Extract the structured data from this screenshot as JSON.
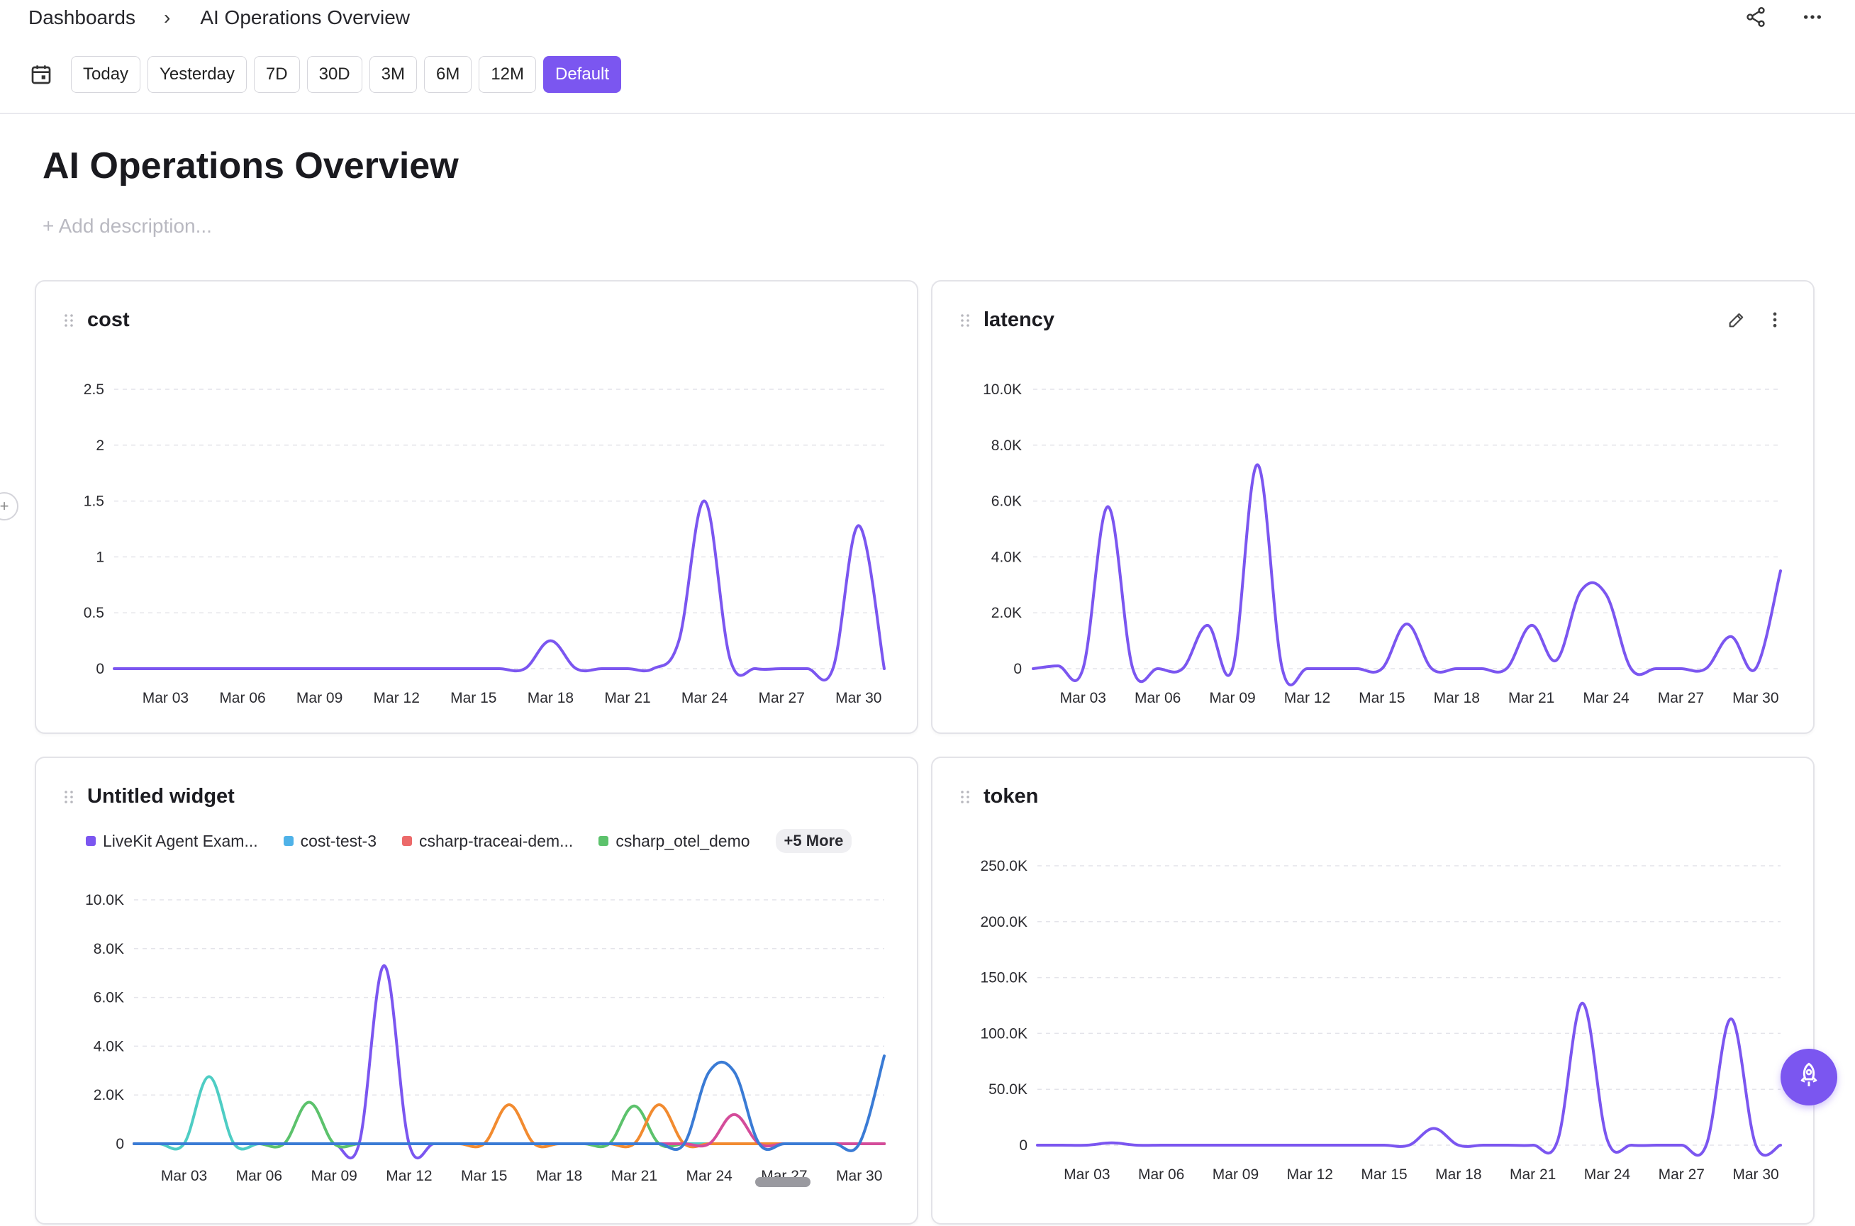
{
  "breadcrumb": {
    "root": "Dashboards",
    "separator": "›",
    "current": "AI Operations Overview"
  },
  "top_actions": [
    "share-icon",
    "more-horizontal-icon"
  ],
  "date_ranges": [
    {
      "label": "Today",
      "active": false
    },
    {
      "label": "Yesterday",
      "active": false
    },
    {
      "label": "7D",
      "active": false
    },
    {
      "label": "30D",
      "active": false
    },
    {
      "label": "3M",
      "active": false
    },
    {
      "label": "6M",
      "active": false
    },
    {
      "label": "12M",
      "active": false
    },
    {
      "label": "Default",
      "active": true
    }
  ],
  "page": {
    "title": "AI Operations Overview",
    "description_placeholder": "+ Add description..."
  },
  "colors": {
    "accent": "#7b56f0",
    "line": "#7b56f0",
    "grid": "#e4e4ea"
  },
  "widgets": {
    "cost": {
      "title": "cost"
    },
    "latency": {
      "title": "latency"
    },
    "untitled": {
      "title": "Untitled widget",
      "legend": [
        {
          "name": "LiveKit Agent Exam...",
          "color": "#7b56f0"
        },
        {
          "name": "cost-test-3",
          "color": "#4fb2e8"
        },
        {
          "name": "csharp-traceai-dem...",
          "color": "#ec6a6a"
        },
        {
          "name": "csharp_otel_demo",
          "color": "#5cc26c"
        }
      ],
      "more_label": "+5 More"
    },
    "token": {
      "title": "token"
    }
  },
  "chart_data": [
    {
      "id": "cost",
      "type": "line",
      "title": "cost",
      "x": [
        "Mar 01",
        "Mar 02",
        "Mar 03",
        "Mar 04",
        "Mar 05",
        "Mar 06",
        "Mar 07",
        "Mar 08",
        "Mar 09",
        "Mar 10",
        "Mar 11",
        "Mar 12",
        "Mar 13",
        "Mar 14",
        "Mar 15",
        "Mar 16",
        "Mar 17",
        "Mar 18",
        "Mar 19",
        "Mar 20",
        "Mar 21",
        "Mar 22",
        "Mar 23",
        "Mar 24",
        "Mar 25",
        "Mar 26",
        "Mar 27",
        "Mar 28",
        "Mar 29",
        "Mar 30",
        "Mar 31"
      ],
      "x_ticks": [
        "Mar 03",
        "Mar 06",
        "Mar 09",
        "Mar 12",
        "Mar 15",
        "Mar 18",
        "Mar 21",
        "Mar 24",
        "Mar 27",
        "Mar 30"
      ],
      "y_ticks": [
        "0",
        "0.5",
        "1",
        "1.5",
        "2",
        "2.5"
      ],
      "ylim": [
        0,
        2.5
      ],
      "grid": true,
      "series": [
        {
          "color": "#7b56f0",
          "values": [
            0,
            0,
            0,
            0,
            0,
            0,
            0,
            0,
            0,
            0,
            0,
            0,
            0,
            0,
            0,
            0,
            0,
            0.25,
            0,
            0,
            0,
            0,
            0.25,
            1.5,
            0.08,
            0,
            0,
            0,
            0,
            1.28,
            0
          ]
        }
      ]
    },
    {
      "id": "latency",
      "type": "line",
      "title": "latency",
      "x": [
        "Mar 01",
        "Mar 02",
        "Mar 03",
        "Mar 04",
        "Mar 05",
        "Mar 06",
        "Mar 07",
        "Mar 08",
        "Mar 09",
        "Mar 10",
        "Mar 11",
        "Mar 12",
        "Mar 13",
        "Mar 14",
        "Mar 15",
        "Mar 16",
        "Mar 17",
        "Mar 18",
        "Mar 19",
        "Mar 20",
        "Mar 21",
        "Mar 22",
        "Mar 23",
        "Mar 24",
        "Mar 25",
        "Mar 26",
        "Mar 27",
        "Mar 28",
        "Mar 29",
        "Mar 30",
        "Mar 31"
      ],
      "x_ticks": [
        "Mar 03",
        "Mar 06",
        "Mar 09",
        "Mar 12",
        "Mar 15",
        "Mar 18",
        "Mar 21",
        "Mar 24",
        "Mar 27",
        "Mar 30"
      ],
      "y_ticks": [
        "0",
        "2.0K",
        "4.0K",
        "6.0K",
        "8.0K",
        "10.0K"
      ],
      "ylim": [
        0,
        10000
      ],
      "grid": true,
      "series": [
        {
          "color": "#7b56f0",
          "values": [
            0,
            100,
            0,
            5800,
            0,
            0,
            0,
            1550,
            0,
            7300,
            0,
            0,
            0,
            0,
            0,
            1600,
            0,
            0,
            0,
            0,
            1550,
            300,
            2800,
            2650,
            0,
            0,
            0,
            0,
            1150,
            0,
            3500
          ]
        }
      ]
    },
    {
      "id": "untitled",
      "type": "line",
      "title": "Untitled widget",
      "x": [
        "Mar 01",
        "Mar 02",
        "Mar 03",
        "Mar 04",
        "Mar 05",
        "Mar 06",
        "Mar 07",
        "Mar 08",
        "Mar 09",
        "Mar 10",
        "Mar 11",
        "Mar 12",
        "Mar 13",
        "Mar 14",
        "Mar 15",
        "Mar 16",
        "Mar 17",
        "Mar 18",
        "Mar 19",
        "Mar 20",
        "Mar 21",
        "Mar 22",
        "Mar 23",
        "Mar 24",
        "Mar 25",
        "Mar 26",
        "Mar 27",
        "Mar 28",
        "Mar 29",
        "Mar 30",
        "Mar 31"
      ],
      "x_ticks": [
        "Mar 03",
        "Mar 06",
        "Mar 09",
        "Mar 12",
        "Mar 15",
        "Mar 18",
        "Mar 21",
        "Mar 24",
        "Mar 27",
        "Mar 30"
      ],
      "y_ticks": [
        "0",
        "2.0K",
        "4.0K",
        "6.0K",
        "8.0K",
        "10.0K"
      ],
      "ylim": [
        0,
        10000
      ],
      "grid": true,
      "series": [
        {
          "name": "LiveKit Agent Exam...",
          "color": "#7b56f0",
          "values": [
            0,
            0,
            0,
            0,
            0,
            0,
            0,
            0,
            0,
            0,
            7300,
            0,
            0,
            0,
            0,
            0,
            0,
            0,
            0,
            0,
            0,
            0,
            0,
            0,
            0,
            0,
            0,
            0,
            0,
            0,
            0
          ]
        },
        {
          "name": "cost-test-3",
          "color": "#4fb2e8",
          "values": [
            0,
            0,
            0,
            0,
            0,
            0,
            0,
            0,
            0,
            0,
            0,
            0,
            0,
            0,
            0,
            0,
            0,
            0,
            0,
            0,
            0,
            0,
            0,
            0,
            0,
            0,
            0,
            0,
            0,
            0,
            0
          ]
        },
        {
          "name": "csharp-traceai-dem...",
          "color": "#ec6a6a",
          "values": [
            0,
            0,
            0,
            0,
            0,
            0,
            0,
            0,
            0,
            0,
            0,
            0,
            0,
            0,
            0,
            0,
            0,
            0,
            0,
            0,
            0,
            0,
            0,
            0,
            0,
            0,
            0,
            0,
            0,
            0,
            0
          ]
        },
        {
          "name": "csharp_otel_demo",
          "color": "#5cc26c",
          "values": [
            0,
            0,
            0,
            0,
            0,
            0,
            0,
            1700,
            0,
            0,
            0,
            0,
            0,
            0,
            0,
            0,
            0,
            0,
            0,
            0,
            1550,
            0,
            0,
            0,
            0,
            0,
            0,
            0,
            0,
            0,
            0
          ]
        },
        {
          "name": "",
          "color": "#4ecdc4",
          "values": [
            0,
            0,
            0,
            2750,
            0,
            0,
            0,
            0,
            0,
            0,
            0,
            0,
            0,
            0,
            0,
            0,
            0,
            0,
            0,
            0,
            0,
            0,
            0,
            0,
            0,
            0,
            0,
            0,
            0,
            0,
            0
          ]
        },
        {
          "name": "",
          "color": "#f28b30",
          "values": [
            0,
            0,
            0,
            0,
            0,
            0,
            0,
            0,
            0,
            0,
            0,
            0,
            0,
            0,
            0,
            1600,
            0,
            0,
            0,
            0,
            0,
            1600,
            0,
            0,
            0,
            0,
            0,
            0,
            0,
            0,
            0
          ]
        },
        {
          "name": "",
          "color": "#d44c9a",
          "values": [
            0,
            0,
            0,
            0,
            0,
            0,
            0,
            0,
            0,
            0,
            0,
            0,
            0,
            0,
            0,
            0,
            0,
            0,
            0,
            0,
            0,
            0,
            0,
            0,
            1200,
            0,
            0,
            0,
            0,
            0,
            0
          ]
        },
        {
          "name": "",
          "color": "#3a7bd5",
          "values": [
            0,
            0,
            0,
            0,
            0,
            0,
            0,
            0,
            0,
            0,
            0,
            0,
            0,
            0,
            0,
            0,
            0,
            0,
            0,
            0,
            0,
            0,
            0,
            2950,
            2950,
            0,
            0,
            0,
            0,
            0,
            3600
          ]
        }
      ]
    },
    {
      "id": "token",
      "type": "line",
      "title": "token",
      "x": [
        "Mar 01",
        "Mar 02",
        "Mar 03",
        "Mar 04",
        "Mar 05",
        "Mar 06",
        "Mar 07",
        "Mar 08",
        "Mar 09",
        "Mar 10",
        "Mar 11",
        "Mar 12",
        "Mar 13",
        "Mar 14",
        "Mar 15",
        "Mar 16",
        "Mar 17",
        "Mar 18",
        "Mar 19",
        "Mar 20",
        "Mar 21",
        "Mar 22",
        "Mar 23",
        "Mar 24",
        "Mar 25",
        "Mar 26",
        "Mar 27",
        "Mar 28",
        "Mar 29",
        "Mar 30",
        "Mar 31"
      ],
      "x_ticks": [
        "Mar 03",
        "Mar 06",
        "Mar 09",
        "Mar 12",
        "Mar 15",
        "Mar 18",
        "Mar 21",
        "Mar 24",
        "Mar 27",
        "Mar 30"
      ],
      "y_ticks": [
        "0",
        "50.0K",
        "100.0K",
        "150.0K",
        "200.0K",
        "250.0K"
      ],
      "ylim": [
        0,
        250000
      ],
      "grid": true,
      "series": [
        {
          "color": "#7b56f0",
          "values": [
            0,
            0,
            0,
            2000,
            0,
            0,
            0,
            0,
            0,
            0,
            0,
            0,
            0,
            0,
            0,
            0,
            15000,
            0,
            0,
            0,
            0,
            4000,
            127000,
            5000,
            0,
            0,
            0,
            0,
            113000,
            0,
            0
          ]
        }
      ]
    }
  ]
}
